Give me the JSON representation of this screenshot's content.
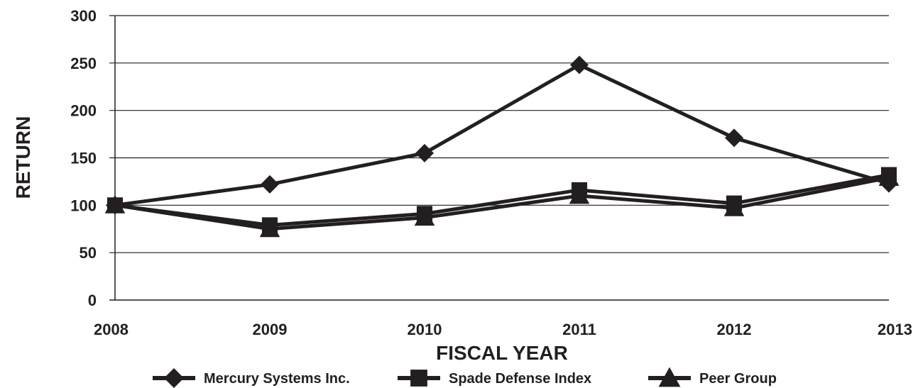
{
  "chart_data": {
    "type": "line",
    "title": "",
    "xlabel": "FISCAL YEAR",
    "ylabel": "RETURN",
    "categories": [
      "2008",
      "2009",
      "2010",
      "2011",
      "2012",
      "2013"
    ],
    "ylim": [
      0,
      300
    ],
    "yticks": [
      "0",
      "50",
      "100",
      "150",
      "200",
      "250",
      "300"
    ],
    "grid": true,
    "legend_position": "bottom",
    "colors": {
      "line": "#231f20",
      "grid": "#231f20",
      "background": "#ffffff"
    },
    "series": [
      {
        "name": "Mercury Systems Inc.",
        "marker": "diamond",
        "values": [
          100,
          122,
          155,
          248,
          171,
          123
        ]
      },
      {
        "name": "Spade Defense Index",
        "marker": "square",
        "values": [
          100,
          79,
          91,
          116,
          102,
          132
        ]
      },
      {
        "name": "Peer Group",
        "marker": "triangle",
        "values": [
          100,
          75,
          87,
          110,
          97,
          129
        ]
      }
    ]
  }
}
